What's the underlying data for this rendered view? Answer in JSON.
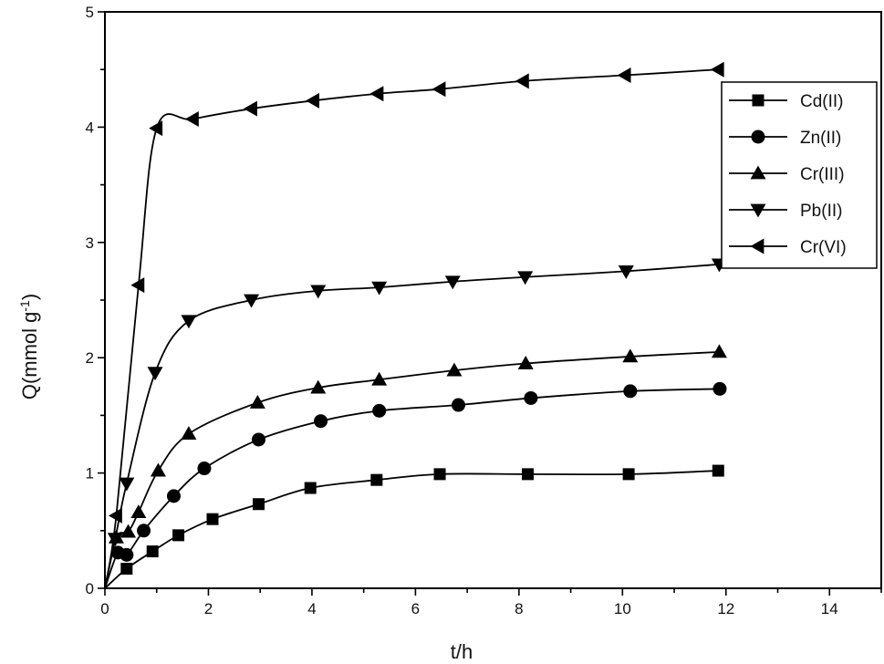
{
  "chart_data": {
    "type": "line",
    "xlabel": "t/h",
    "ylabel_main": "Q(mmol g",
    "ylabel_sup": "-1",
    "ylabel_close": ")",
    "xlim": [
      0,
      15
    ],
    "ylim": [
      0,
      5
    ],
    "xticks": [
      0,
      2,
      4,
      6,
      8,
      10,
      12,
      14
    ],
    "yticks": [
      0,
      1,
      2,
      3,
      4,
      5
    ],
    "grid": false,
    "legend_position": "top-right",
    "series": [
      {
        "name": "Cd(II)",
        "marker": "square",
        "x": [
          0,
          0.42,
          0.92,
          1.42,
          2.08,
          2.97,
          3.97,
          5.25,
          6.47,
          8.17,
          10.12,
          11.85
        ],
        "y": [
          0,
          0.17,
          0.32,
          0.46,
          0.6,
          0.73,
          0.87,
          0.94,
          0.99,
          0.99,
          0.99,
          1.02
        ]
      },
      {
        "name": "Zn(II)",
        "marker": "circle",
        "x": [
          0,
          0.25,
          0.42,
          0.75,
          1.33,
          1.92,
          2.97,
          4.17,
          5.3,
          6.83,
          8.23,
          10.15,
          11.88
        ],
        "y": [
          0,
          0.31,
          0.29,
          0.5,
          0.8,
          1.04,
          1.29,
          1.45,
          1.54,
          1.59,
          1.65,
          1.71,
          1.73
        ]
      },
      {
        "name": "Cr(III)",
        "marker": "triangle-up",
        "x": [
          0,
          0.22,
          0.45,
          0.65,
          1.03,
          1.62,
          2.95,
          4.12,
          5.3,
          6.75,
          8.13,
          10.15,
          11.87
        ],
        "y": [
          0,
          0.44,
          0.49,
          0.66,
          1.02,
          1.34,
          1.61,
          1.74,
          1.81,
          1.89,
          1.95,
          2.01,
          2.05
        ]
      },
      {
        "name": "Pb(II)",
        "marker": "triangle-down",
        "x": [
          0,
          0.2,
          0.42,
          0.97,
          1.62,
          2.83,
          4.12,
          5.3,
          6.72,
          8.12,
          10.07,
          11.87
        ],
        "y": [
          0,
          0.43,
          0.91,
          1.87,
          2.32,
          2.5,
          2.58,
          2.61,
          2.66,
          2.7,
          2.75,
          2.81
        ]
      },
      {
        "name": "Cr(VI)",
        "marker": "triangle-left",
        "x": [
          0,
          0.22,
          0.65,
          1.0,
          1.7,
          2.83,
          4.03,
          5.27,
          6.47,
          8.08,
          10.05,
          11.85
        ],
        "y": [
          0,
          0.63,
          2.63,
          3.99,
          4.07,
          4.16,
          4.23,
          4.29,
          4.33,
          4.4,
          4.45,
          4.5
        ]
      }
    ]
  }
}
